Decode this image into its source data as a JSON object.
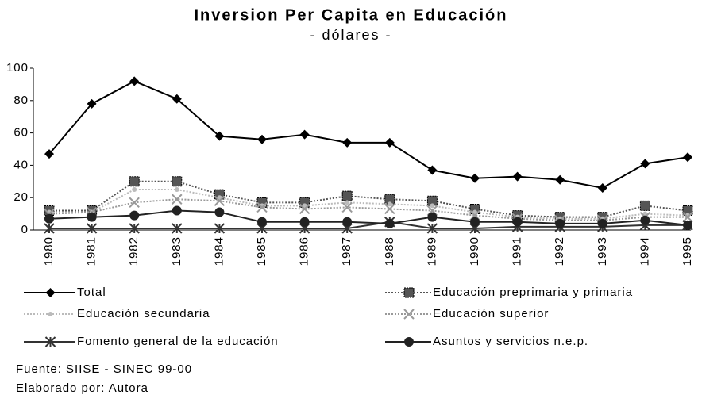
{
  "chart_data": {
    "type": "line",
    "title": "Inversion Per Capita en Educación",
    "subtitle": "- dólares -",
    "categories": [
      "1980",
      "1981",
      "1982",
      "1983",
      "1984",
      "1985",
      "1986",
      "1987",
      "1988",
      "1989",
      "1990",
      "1991",
      "1992",
      "1993",
      "1994",
      "1995"
    ],
    "series": [
      {
        "name": "Total",
        "color": "#000000",
        "marker": "diamond",
        "dash": "solid",
        "values": [
          47,
          78,
          92,
          81,
          58,
          56,
          59,
          54,
          54,
          37,
          32,
          33,
          31,
          26,
          41,
          45
        ]
      },
      {
        "name": "Educación preprimaria y primaria",
        "color": "#555555",
        "marker": "square",
        "dash": "dotted",
        "values": [
          12,
          12,
          30,
          30,
          22,
          17,
          17,
          21,
          19,
          18,
          13,
          9,
          8,
          8,
          15,
          12
        ]
      },
      {
        "name": "Educación secundaria",
        "color": "#bbbbbb",
        "marker": "dot",
        "dash": "dotted",
        "values": [
          11,
          11,
          25,
          25,
          20,
          15,
          15,
          17,
          16,
          15,
          11,
          8,
          7,
          7,
          10,
          9
        ]
      },
      {
        "name": "Educación superior",
        "color": "#999999",
        "marker": "x",
        "dash": "dotted",
        "values": [
          10,
          11,
          17,
          19,
          18,
          14,
          13,
          14,
          13,
          12,
          9,
          7,
          6,
          6,
          8,
          8
        ]
      },
      {
        "name": "Fomento general de la educación",
        "color": "#333333",
        "marker": "asterisk",
        "dash": "solid",
        "values": [
          1,
          1,
          1,
          1,
          1,
          1,
          1,
          1,
          5,
          1,
          1,
          2,
          2,
          2,
          3,
          3
        ]
      },
      {
        "name": "Asuntos y servicios n.e.p.",
        "color": "#222222",
        "marker": "circle",
        "dash": "solid",
        "values": [
          7,
          8,
          9,
          12,
          11,
          5,
          5,
          5,
          4,
          8,
          5,
          5,
          4,
          4,
          6,
          3
        ]
      }
    ],
    "ylim": [
      0,
      100
    ],
    "yticks": [
      0,
      20,
      40,
      60,
      80,
      100
    ],
    "grid": false,
    "notes": [
      "Fuente:  SIISE - SINEC 99-00",
      "Elaborado por: Autora"
    ]
  }
}
